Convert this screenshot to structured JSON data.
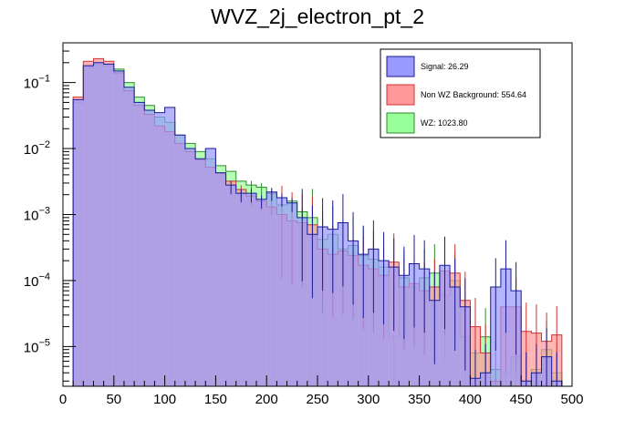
{
  "chart_data": {
    "type": "histogram",
    "title": "WVZ_2j_electron_pt_2",
    "xlabel": "",
    "ylabel": "",
    "xlim": [
      0,
      500
    ],
    "ylim": [
      2.5e-06,
      0.4
    ],
    "yscale": "log",
    "bin_width": 10,
    "x_ticks": [
      "0",
      "50",
      "100",
      "150",
      "200",
      "250",
      "300",
      "350",
      "400",
      "450",
      "500"
    ],
    "y_ticks": [
      {
        "base": "10",
        "exp": "−1",
        "value": 0.1
      },
      {
        "base": "10",
        "exp": "−2",
        "value": 0.01
      },
      {
        "base": "10",
        "exp": "−3",
        "value": 0.001
      },
      {
        "base": "10",
        "exp": "−4",
        "value": 0.0001
      },
      {
        "base": "10",
        "exp": "−5",
        "value": 1e-05
      }
    ],
    "legend_position": "top-right",
    "series": [
      {
        "name": "WZ",
        "label": "WZ: 1023.80",
        "color": "#99ff99",
        "line": "#2f8a2f",
        "bin_starts": [
          10,
          20,
          30,
          40,
          50,
          60,
          70,
          80,
          90,
          100,
          110,
          120,
          130,
          140,
          150,
          160,
          170,
          180,
          190,
          200,
          210,
          220,
          230,
          240,
          250,
          260,
          270,
          280,
          290,
          300,
          310,
          320,
          330,
          340,
          350,
          360,
          370,
          380,
          390,
          400,
          410,
          420,
          430,
          440,
          450,
          460,
          470,
          480
        ],
        "values": [
          0.05,
          0.17,
          0.19,
          0.18,
          0.16,
          0.1,
          0.06,
          0.045,
          0.03,
          0.025,
          0.016,
          0.012,
          0.009,
          0.007,
          0.0055,
          0.0045,
          0.0032,
          0.0028,
          0.0026,
          0.0021,
          0.0014,
          0.0016,
          0.0011,
          0.0009,
          0.00042,
          0.0005,
          0.0003,
          0.00034,
          0.00024,
          0.00021,
          0.00016,
          1.4e-05,
          0.00011,
          8e-05,
          0.00011,
          0.00013,
          6e-05,
          0.0001,
          1.4e-05,
          8e-06,
          1.4e-05,
          4.5e-06,
          4e-06,
          7e-06,
          3e-06,
          4.5e-06,
          9e-06,
          4e-06
        ]
      },
      {
        "name": "Non WZ Background",
        "label": "Non WZ Background: 554.64",
        "color": "#ff9999",
        "line": "#cc3333",
        "bin_starts": [
          10,
          20,
          30,
          40,
          50,
          60,
          70,
          80,
          90,
          100,
          110,
          120,
          130,
          140,
          150,
          160,
          170,
          180,
          190,
          200,
          210,
          220,
          230,
          240,
          250,
          260,
          270,
          280,
          290,
          300,
          310,
          320,
          330,
          340,
          350,
          360,
          370,
          380,
          390,
          400,
          410,
          420,
          430,
          440,
          450,
          460,
          470,
          480
        ],
        "values": [
          0.06,
          0.21,
          0.23,
          0.21,
          0.14,
          0.075,
          0.045,
          0.033,
          0.022,
          0.018,
          0.012,
          0.009,
          0.0068,
          0.0052,
          0.0042,
          0.0032,
          0.0024,
          0.0019,
          0.0016,
          0.0013,
          0.001,
          0.0008,
          0.00075,
          0.0007,
          0.0003,
          0.00025,
          0.00028,
          0.00024,
          0.00017,
          0.00015,
          0.00012,
          0.00019,
          8e-05,
          9e-05,
          7e-05,
          8e-05,
          0.00014,
          0.00013,
          5e-05,
          2e-05,
          8e-06,
          3e-06,
          4e-05,
          4e-05,
          1.7e-05,
          1.6e-05,
          1.2e-05,
          1.5e-05
        ]
      },
      {
        "name": "Signal",
        "label": "Signal: 26.29",
        "color": "#9999ff",
        "line": "#1a1a99",
        "bin_starts": [
          10,
          20,
          30,
          40,
          50,
          60,
          70,
          80,
          90,
          100,
          110,
          120,
          130,
          140,
          150,
          160,
          170,
          180,
          190,
          200,
          210,
          220,
          230,
          240,
          250,
          260,
          270,
          280,
          290,
          300,
          310,
          320,
          330,
          340,
          350,
          360,
          370,
          380,
          390,
          400,
          410,
          420,
          430,
          440,
          450,
          460,
          470,
          480
        ],
        "values": [
          0.055,
          0.18,
          0.2,
          0.19,
          0.15,
          0.085,
          0.05,
          0.038,
          0.035,
          0.042,
          0.016,
          0.01,
          0.007,
          0.01,
          0.0043,
          0.0028,
          0.0021,
          0.0021,
          0.0017,
          0.0022,
          0.0018,
          0.0015,
          0.0009,
          0.0005,
          0.00065,
          0.0006,
          0.00075,
          0.0004,
          0.00025,
          0.0003,
          0.0002,
          0.00016,
          0.00012,
          0.00018,
          0.00015,
          5e-05,
          0.00017,
          8e-05,
          4e-05,
          3.3e-06,
          4e-06,
          8e-05,
          0.00015,
          7e-05,
          3e-06,
          4e-06,
          7e-06,
          3e-06
        ]
      }
    ]
  }
}
